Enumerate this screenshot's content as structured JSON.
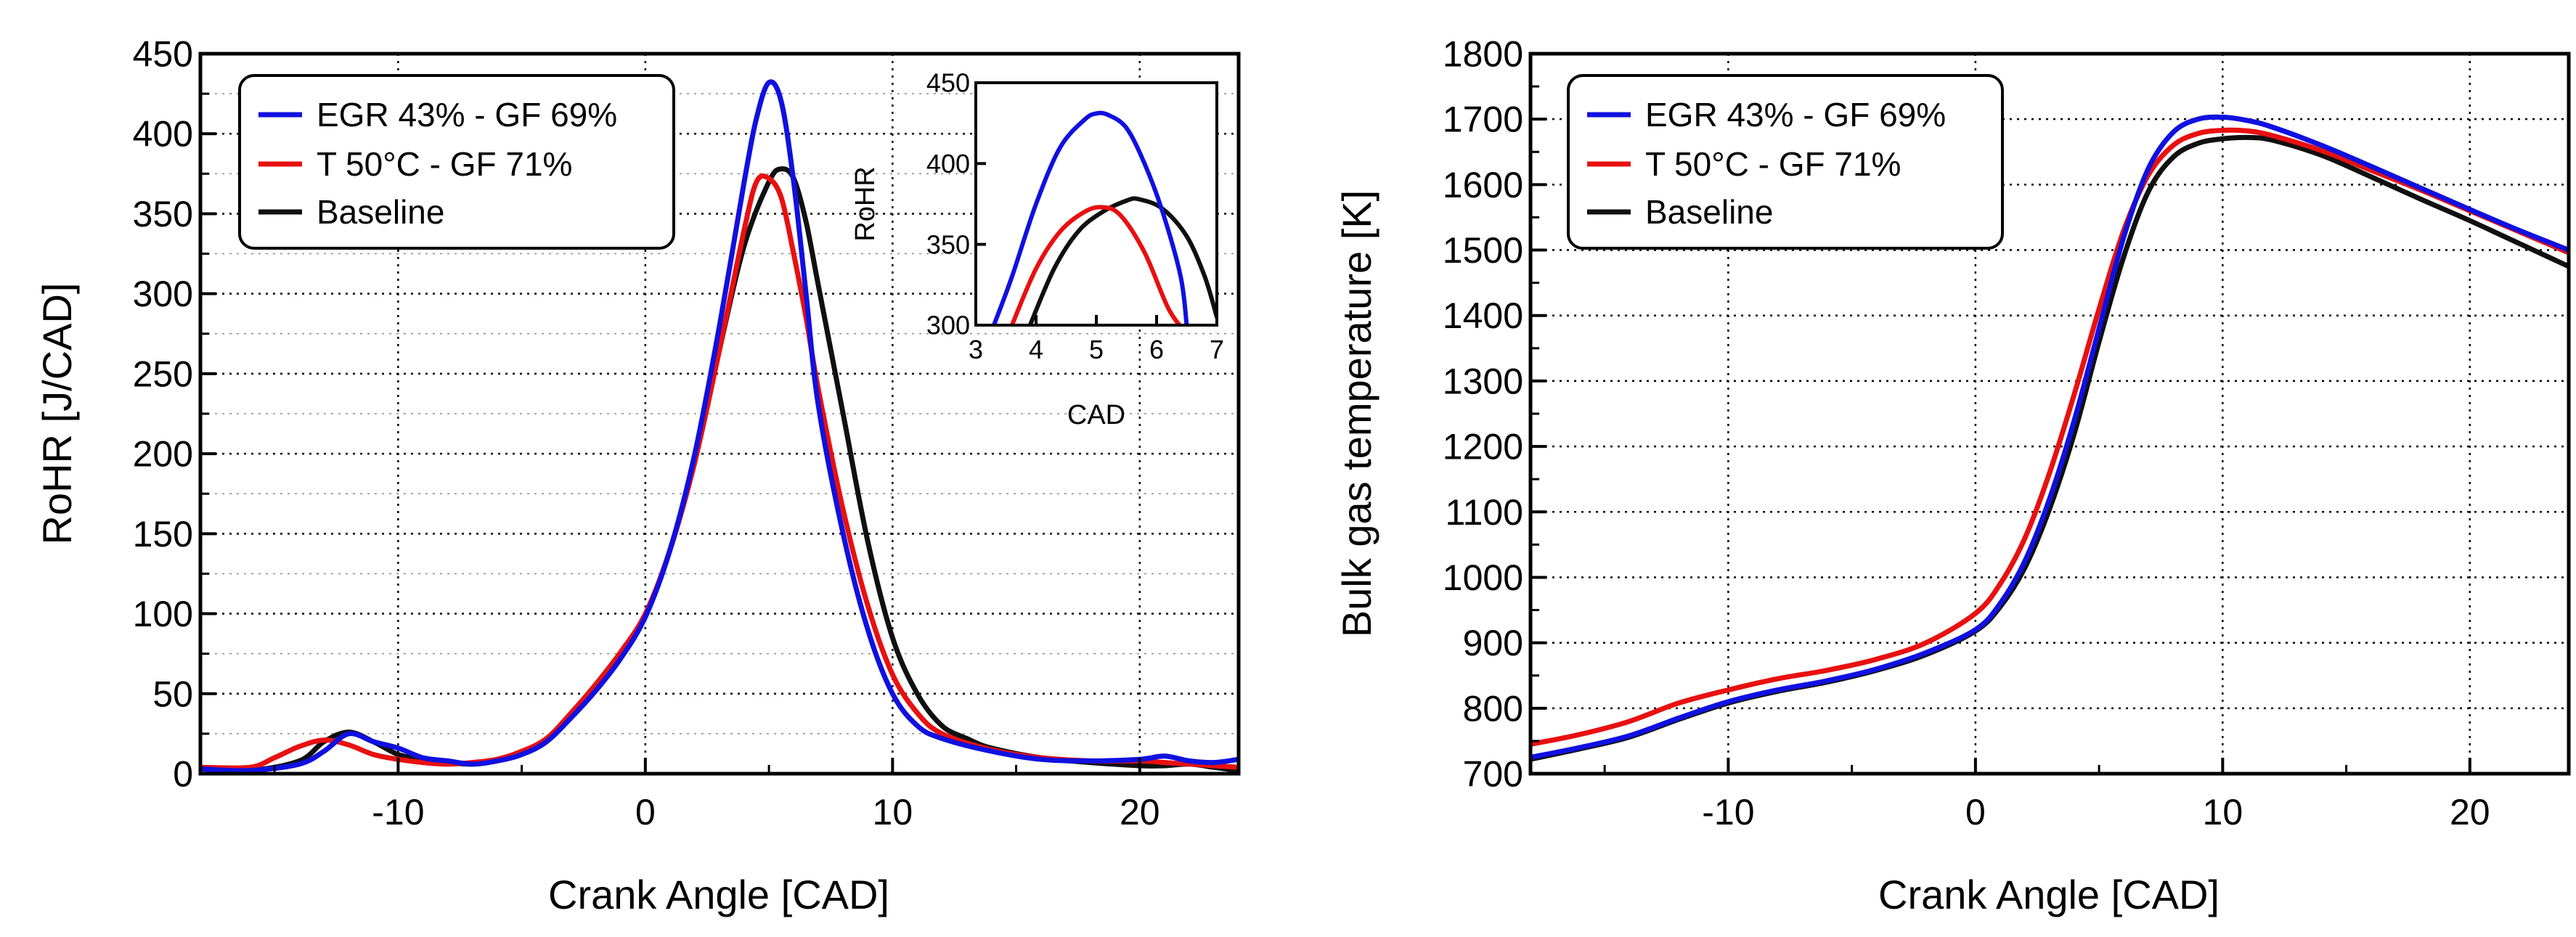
{
  "chart_data": [
    {
      "type": "line",
      "xlabel": "Crank Angle [CAD]",
      "ylabel": "RoHR [J/CAD]",
      "xlim": [
        -18,
        24
      ],
      "ylim": [
        0,
        450
      ],
      "xticks": [
        -10,
        0,
        10,
        20
      ],
      "yticks": [
        0,
        50,
        100,
        150,
        200,
        250,
        300,
        350,
        400,
        450
      ],
      "grid": true,
      "legend_position": "top-left",
      "series": [
        {
          "name": "EGR 43% - GF 69%",
          "color": "#1010e0",
          "x": [
            -18,
            -16,
            -14,
            -13,
            -12,
            -11,
            -10,
            -9,
            -8,
            -7,
            -6,
            -5,
            -4,
            -3,
            -2,
            -1,
            0,
            1,
            2,
            3,
            4,
            4.5,
            5,
            5.5,
            6,
            6.5,
            7,
            8,
            9,
            10,
            11,
            12,
            14,
            16,
            18,
            20,
            21,
            22,
            23,
            24
          ],
          "y": [
            3,
            2,
            6,
            14,
            25,
            20,
            16,
            10,
            8,
            6,
            8,
            12,
            20,
            35,
            52,
            72,
            98,
            140,
            200,
            280,
            370,
            410,
            432,
            420,
            370,
            300,
            230,
            150,
            90,
            50,
            30,
            22,
            14,
            9,
            8,
            9,
            11,
            8,
            7,
            9
          ]
        },
        {
          "name": "T 50°C - GF 71%",
          "color": "#e81010",
          "x": [
            -18,
            -16,
            -15,
            -14,
            -13,
            -12,
            -11,
            -10,
            -9,
            -8,
            -7,
            -6,
            -5,
            -4,
            -3,
            -2,
            -1,
            0,
            1,
            2,
            3,
            4,
            4.5,
            5,
            5.5,
            6,
            6.5,
            7,
            8,
            9,
            10,
            11,
            12,
            14,
            16,
            18,
            20,
            21,
            22,
            23,
            24
          ],
          "y": [
            4,
            4,
            10,
            17,
            21,
            18,
            12,
            9,
            7,
            6,
            7,
            9,
            14,
            22,
            38,
            56,
            76,
            100,
            140,
            195,
            265,
            340,
            370,
            372,
            360,
            325,
            285,
            240,
            165,
            105,
            62,
            38,
            25,
            15,
            10,
            8,
            8,
            7,
            6,
            5,
            4
          ]
        },
        {
          "name": "Baseline",
          "color": "#101010",
          "x": [
            -18,
            -16,
            -14,
            -13,
            -12,
            -11,
            -10,
            -9,
            -8,
            -7,
            -6,
            -5,
            -4,
            -3,
            -2,
            -1,
            0,
            1,
            2,
            3,
            4,
            5,
            5.5,
            6,
            6.5,
            7,
            8,
            9,
            10,
            11,
            12,
            13,
            14,
            16,
            18,
            20,
            21,
            22,
            23,
            24
          ],
          "y": [
            3,
            2,
            8,
            20,
            26,
            20,
            12,
            9,
            7,
            6,
            8,
            12,
            20,
            36,
            54,
            75,
            99,
            140,
            195,
            265,
            330,
            370,
            378,
            372,
            345,
            305,
            225,
            145,
            85,
            50,
            30,
            22,
            16,
            10,
            7,
            5,
            5,
            6,
            4,
            2
          ]
        }
      ],
      "inset": {
        "xlabel": "CAD",
        "ylabel": "RoHR",
        "xlim": [
          3,
          7
        ],
        "ylim": [
          300,
          450
        ],
        "xticks": [
          3,
          4,
          5,
          6,
          7
        ],
        "yticks": [
          300,
          350,
          400,
          450
        ],
        "series": [
          {
            "name": "EGR 43% - GF 69%",
            "color": "#1010e0",
            "x": [
              3.3,
              3.6,
              4,
              4.4,
              4.8,
              5,
              5.2,
              5.5,
              5.8,
              6.1,
              6.4,
              6.5
            ],
            "y": [
              300,
              330,
              375,
              410,
              427,
              431,
              430,
              422,
              400,
              370,
              330,
              300
            ]
          },
          {
            "name": "T 50°C - GF 71%",
            "color": "#e81010",
            "x": [
              3.6,
              4,
              4.4,
              4.8,
              5.1,
              5.4,
              5.8,
              6.2,
              6.5
            ],
            "y": [
              300,
              335,
              358,
              370,
              373,
              368,
              345,
              310,
              295
            ]
          },
          {
            "name": "Baseline",
            "color": "#101010",
            "x": [
              3.9,
              4.3,
              4.7,
              5.1,
              5.5,
              5.7,
              6.1,
              6.5,
              6.8,
              7
            ],
            "y": [
              300,
              335,
              358,
              370,
              377,
              378,
              372,
              355,
              330,
              305
            ]
          }
        ]
      }
    },
    {
      "type": "line",
      "xlabel": "Crank Angle [CAD]",
      "ylabel": "Bulk gas temperature [K]",
      "xlim": [
        -18,
        24
      ],
      "ylim": [
        700,
        1800
      ],
      "xticks": [
        -10,
        0,
        10,
        20
      ],
      "yticks": [
        700,
        800,
        900,
        1000,
        1100,
        1200,
        1300,
        1400,
        1500,
        1600,
        1700,
        1800
      ],
      "grid": true,
      "legend_position": "top-left",
      "series": [
        {
          "name": "EGR 43% - GF 69%",
          "color": "#1010e0",
          "x": [
            -18,
            -16,
            -14,
            -12,
            -10,
            -8,
            -6,
            -4,
            -2,
            0,
            1,
            2,
            3,
            4,
            5,
            6,
            7,
            8,
            9,
            10,
            11,
            12,
            14,
            16,
            18,
            20,
            22,
            24
          ],
          "y": [
            725,
            740,
            758,
            785,
            810,
            828,
            842,
            860,
            885,
            920,
            960,
            1025,
            1120,
            1240,
            1380,
            1520,
            1625,
            1680,
            1700,
            1703,
            1698,
            1688,
            1660,
            1628,
            1595,
            1562,
            1530,
            1500
          ]
        },
        {
          "name": "T 50°C - GF 71%",
          "color": "#e81010",
          "x": [
            -18,
            -16,
            -14,
            -12,
            -10,
            -8,
            -6,
            -4,
            -2,
            0,
            1,
            2,
            3,
            4,
            5,
            6,
            7,
            8,
            9,
            10,
            11,
            12,
            14,
            16,
            18,
            20,
            22,
            24
          ],
          "y": [
            745,
            760,
            780,
            808,
            828,
            845,
            858,
            875,
            900,
            945,
            990,
            1060,
            1160,
            1280,
            1410,
            1530,
            1615,
            1660,
            1678,
            1683,
            1682,
            1675,
            1652,
            1622,
            1592,
            1560,
            1528,
            1496
          ]
        },
        {
          "name": "Baseline",
          "color": "#101010",
          "x": [
            -18,
            -16,
            -14,
            -12,
            -10,
            -8,
            -6,
            -4,
            -2,
            0,
            1,
            2,
            3,
            4,
            5,
            6,
            7,
            8,
            9,
            10,
            11,
            12,
            14,
            16,
            18,
            20,
            22,
            24
          ],
          "y": [
            722,
            738,
            756,
            783,
            808,
            826,
            840,
            858,
            882,
            918,
            955,
            1015,
            1105,
            1220,
            1360,
            1490,
            1590,
            1642,
            1663,
            1670,
            1672,
            1668,
            1645,
            1612,
            1578,
            1545,
            1510,
            1475
          ]
        }
      ]
    }
  ]
}
